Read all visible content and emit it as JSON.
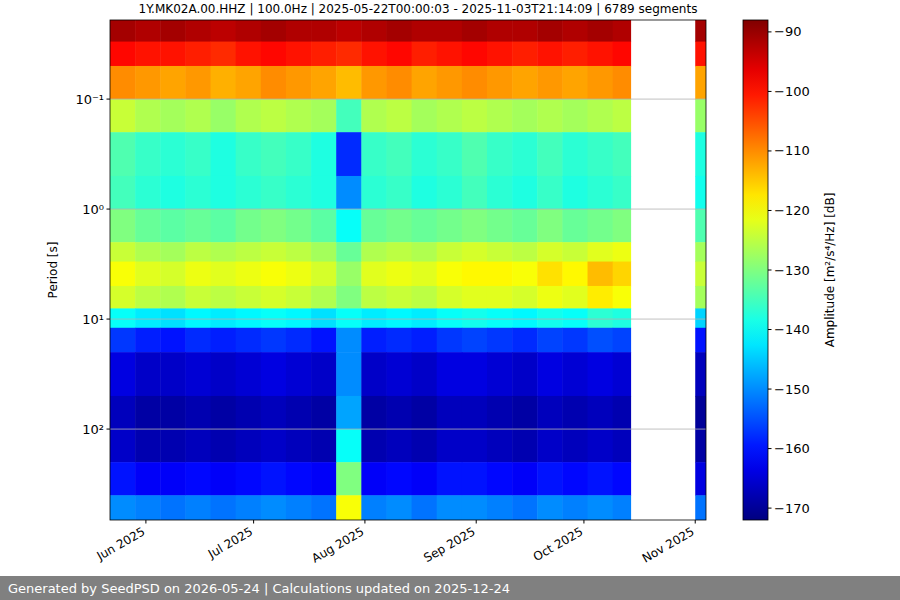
{
  "chart_data": {
    "type": "heatmap",
    "title": "1Y.MK02A.00.HHZ | 100.0Hz | 2025-05-22T00:00:03 - 2025-11-03T21:14:09 | 6789 segments",
    "y_label": "Period [s]",
    "footer": "Generated by SeedPSD on 2026-05-24 | Calculations updated on 2025-12-24",
    "log": "y",
    "grid": true,
    "xlim": [
      "2025-05-22",
      "2025-11-04"
    ],
    "ylim": [
      0.0191,
      671
    ],
    "xticks": [
      {
        "value": "2025-06-01",
        "label": "Jun 2025"
      },
      {
        "value": "2025-07-01",
        "label": "Jul 2025"
      },
      {
        "value": "2025-08-01",
        "label": "Aug 2025"
      },
      {
        "value": "2025-09-01",
        "label": "Sep 2025"
      },
      {
        "value": "2025-10-01",
        "label": "Oct 2025"
      },
      {
        "value": "2025-11-01",
        "label": "Nov 2025"
      }
    ],
    "yticks": [
      {
        "value": 0.1,
        "label": "10⁻¹"
      },
      {
        "value": 1,
        "label": "10⁰"
      },
      {
        "value": 10,
        "label": "10¹"
      },
      {
        "value": 100,
        "label": "10²"
      }
    ],
    "x_bins": [
      "2025-05-22",
      "2025-05-29",
      "2025-06-05",
      "2025-06-12",
      "2025-06-19",
      "2025-06-26",
      "2025-07-03",
      "2025-07-10",
      "2025-07-17",
      "2025-07-24",
      "2025-07-31",
      "2025-08-07",
      "2025-08-14",
      "2025-08-21",
      "2025-08-28",
      "2025-09-04",
      "2025-09-11",
      "2025-09-18",
      "2025-09-25",
      "2025-10-02",
      "2025-10-09",
      "2025-10-14",
      "2025-11-01",
      "2025-11-04"
    ],
    "y_bins": [
      0.0191,
      0.03,
      0.05,
      0.1,
      0.2,
      0.5,
      1,
      2,
      3,
      5,
      8,
      12,
      20,
      50,
      100,
      200,
      400,
      671
    ],
    "cells": [
      [
        -91,
        -92,
        -91,
        -92,
        -93,
        -92,
        -91,
        -92,
        -92,
        -93,
        -92,
        -91,
        -92,
        -92,
        -91,
        -92,
        -92,
        -91,
        -92,
        -91,
        -92,
        null,
        -91
      ],
      [
        -99,
        -100,
        -100,
        -101,
        -102,
        -100,
        -99,
        -100,
        -101,
        -102,
        -100,
        -99,
        -101,
        -100,
        -99,
        -100,
        -101,
        -100,
        -101,
        -100,
        -99,
        null,
        -100
      ],
      [
        -110,
        -111,
        -112,
        -111,
        -113,
        -112,
        -110,
        -111,
        -112,
        -114,
        -111,
        -110,
        -112,
        -111,
        -110,
        -111,
        -112,
        -111,
        -112,
        -111,
        -110,
        null,
        -112
      ],
      [
        -124,
        -126,
        -127,
        -126,
        -128,
        -126,
        -125,
        -126,
        -127,
        -135,
        -126,
        -125,
        -127,
        -126,
        -125,
        -126,
        -127,
        -126,
        -127,
        -126,
        -125,
        null,
        -128
      ],
      [
        -134,
        -136,
        -137,
        -136,
        -138,
        -136,
        -135,
        -136,
        -138,
        -158,
        -136,
        -135,
        -137,
        -136,
        -134,
        -136,
        -137,
        -135,
        -137,
        -136,
        -135,
        null,
        -138
      ],
      [
        -135,
        -137,
        -138,
        -137,
        -138,
        -137,
        -136,
        -137,
        -138,
        -150,
        -137,
        -136,
        -138,
        -137,
        -135,
        -137,
        -138,
        -136,
        -138,
        -137,
        -136,
        null,
        -139
      ],
      [
        -130,
        -132,
        -133,
        -132,
        -133,
        -131,
        -130,
        -131,
        -133,
        -140,
        -132,
        -131,
        -132,
        -131,
        -130,
        -131,
        -132,
        -130,
        -132,
        -131,
        -130,
        null,
        -134
      ],
      [
        -124,
        -126,
        -127,
        -125,
        -126,
        -125,
        -124,
        -125,
        -127,
        -132,
        -126,
        -125,
        -126,
        -124,
        -123,
        -124,
        -125,
        -123,
        -124,
        -122,
        -121,
        null,
        -127
      ],
      [
        -120,
        -122,
        -123,
        -121,
        -122,
        -121,
        -120,
        -121,
        -123,
        -128,
        -122,
        -121,
        -122,
        -120,
        -119,
        -119,
        -120,
        -117,
        -119,
        -114,
        -116,
        null,
        -124
      ],
      [
        -123,
        -125,
        -126,
        -124,
        -125,
        -124,
        -123,
        -124,
        -126,
        -130,
        -125,
        -124,
        -125,
        -123,
        -122,
        -122,
        -123,
        -121,
        -122,
        -118,
        -120,
        null,
        -127
      ],
      [
        -140,
        -142,
        -143,
        -141,
        -142,
        -141,
        -140,
        -141,
        -143,
        -140,
        -142,
        -141,
        -142,
        -140,
        -139,
        -140,
        -141,
        -139,
        -140,
        -137,
        -138,
        null,
        -144
      ],
      [
        -157,
        -159,
        -160,
        -158,
        -159,
        -158,
        -157,
        -158,
        -160,
        -150,
        -159,
        -158,
        -159,
        -157,
        -156,
        -157,
        -158,
        -156,
        -157,
        -155,
        -156,
        null,
        -160
      ],
      [
        -164,
        -166,
        -166,
        -165,
        -166,
        -165,
        -164,
        -165,
        -166,
        -150,
        -166,
        -165,
        -166,
        -164,
        -164,
        -165,
        -166,
        -164,
        -165,
        -164,
        -165,
        null,
        -167
      ],
      [
        -167,
        -169,
        -169,
        -168,
        -169,
        -168,
        -167,
        -168,
        -169,
        -148,
        -169,
        -168,
        -169,
        -167,
        -167,
        -168,
        -169,
        -167,
        -168,
        -167,
        -168,
        null,
        -170
      ],
      [
        -166,
        -168,
        -168,
        -167,
        -168,
        -167,
        -166,
        -167,
        -168,
        -140,
        -168,
        -167,
        -168,
        -166,
        -166,
        -167,
        -168,
        -166,
        -167,
        -166,
        -167,
        null,
        -169
      ],
      [
        -160,
        -162,
        -162,
        -161,
        -162,
        -161,
        -160,
        -161,
        -162,
        -130,
        -162,
        -161,
        -162,
        -160,
        -160,
        -161,
        -162,
        -160,
        -161,
        -160,
        -161,
        null,
        -164
      ],
      [
        -150,
        -151,
        -152,
        -151,
        -152,
        -151,
        -150,
        -151,
        -152,
        -120,
        -151,
        -150,
        -152,
        -150,
        -150,
        -151,
        -152,
        -150,
        -151,
        -150,
        -151,
        null,
        -152
      ]
    ],
    "colorbar": {
      "label": "Amplitude [m²/s⁴/Hz] [dB]",
      "lim": [
        -172,
        -88
      ],
      "ticks": [
        {
          "value": -90,
          "label": "−90"
        },
        {
          "value": -100,
          "label": "−100"
        },
        {
          "value": -110,
          "label": "−110"
        },
        {
          "value": -120,
          "label": "−120"
        },
        {
          "value": -130,
          "label": "−130"
        },
        {
          "value": -140,
          "label": "−140"
        },
        {
          "value": -150,
          "label": "−150"
        },
        {
          "value": -160,
          "label": "−160"
        },
        {
          "value": -170,
          "label": "−170"
        }
      ]
    }
  }
}
